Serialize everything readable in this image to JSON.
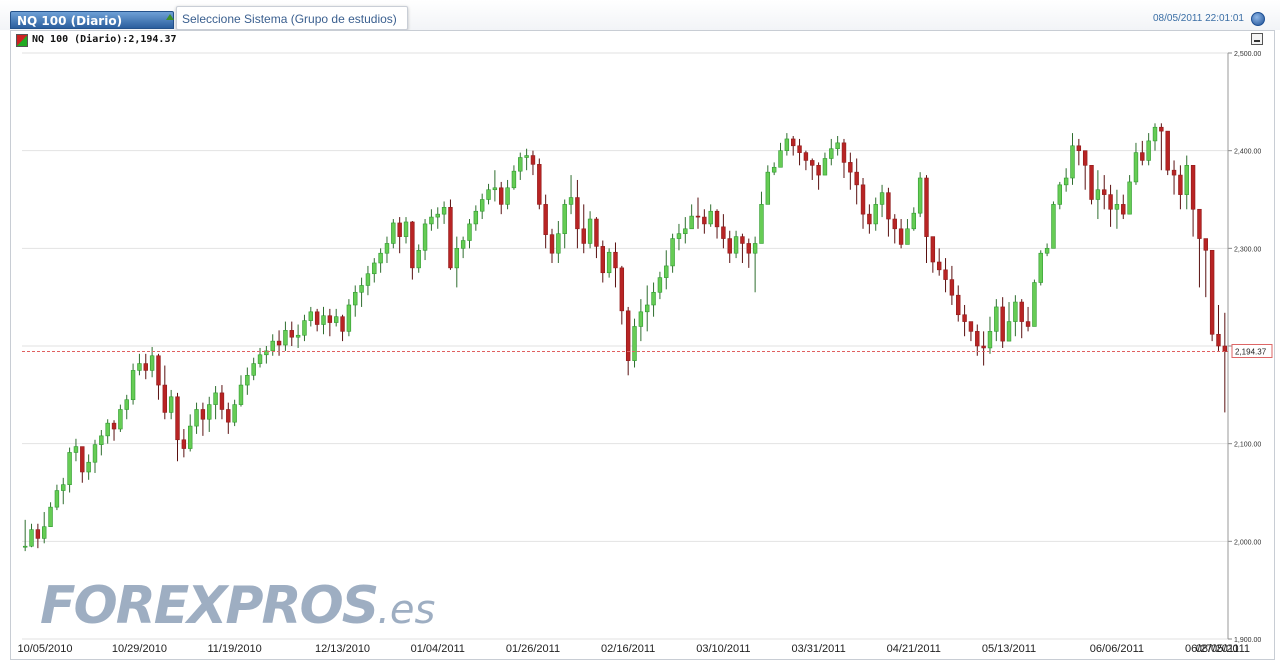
{
  "header": {
    "symbol_tab": "NQ 100 (Diario)",
    "study_select": "Seleccione Sistema (Grupo de estudios)",
    "timestamp": "08/05/2011 22:01:01",
    "settings_icon": "globe-icon"
  },
  "legend": {
    "text": "NQ 100 (Diario):2,194.37",
    "icon": "candle-color-icon"
  },
  "minimize_icon": "minimize-icon",
  "watermark": {
    "main": "FOREXPROS",
    "suffix": ".es"
  },
  "colors": {
    "up": "#2e9a2e",
    "up_body": "#66cc55",
    "down": "#8f1a1a",
    "down_body": "#b82424",
    "last_line": "#e06060",
    "grid": "#e2e2e2"
  },
  "chart_data": {
    "type": "candlestick",
    "ylim": [
      1900,
      2500
    ],
    "y_ticks": [
      1900,
      2000,
      2100,
      2200,
      2300,
      2400,
      2500
    ],
    "y_tick_labels": [
      "1,900.00",
      "2,000.00",
      "2,100.00",
      "2,200.00",
      "2,300.00",
      "2,400.00",
      "2,500.00"
    ],
    "x_tick_labels": [
      "10/05/2010",
      "10/29/2010",
      "11/19/2010",
      "12/13/2010",
      "01/04/2011",
      "01/26/2011",
      "02/16/2011",
      "03/10/2011",
      "03/31/2011",
      "04/21/2011",
      "05/13/2011",
      "06/06/2011",
      "06/27/2011",
      "08/05/2011"
    ],
    "x_tick_index": [
      0,
      18,
      33,
      50,
      65,
      80,
      95,
      110,
      125,
      140,
      155,
      172,
      187,
      215
    ],
    "last_value": 2194.37,
    "last_value_label": "2,194.37",
    "grid": true,
    "close": [
      1995,
      2012,
      2003,
      2015,
      2035,
      2052,
      2058,
      2091,
      2097,
      2071,
      2081,
      2099,
      2108,
      2121,
      2115,
      2135,
      2145,
      2175,
      2182,
      2175,
      2190,
      2160,
      2132,
      2148,
      2104,
      2095,
      2118,
      2135,
      2125,
      2140,
      2152,
      2135,
      2122,
      2140,
      2160,
      2170,
      2182,
      2191,
      2195,
      2205,
      2201,
      2216,
      2209,
      2211,
      2226,
      2235,
      2222,
      2231,
      2224,
      2230,
      2215,
      2242,
      2255,
      2262,
      2274,
      2285,
      2295,
      2305,
      2326,
      2312,
      2327,
      2280,
      2298,
      2325,
      2332,
      2335,
      2342,
      2280,
      2300,
      2308,
      2325,
      2338,
      2350,
      2360,
      2362,
      2345,
      2362,
      2379,
      2393,
      2395,
      2386,
      2345,
      2314,
      2295,
      2315,
      2345,
      2352,
      2320,
      2305,
      2330,
      2302,
      2275,
      2296,
      2280,
      2236,
      2185,
      2220,
      2235,
      2242,
      2255,
      2270,
      2282,
      2310,
      2315,
      2320,
      2333,
      2332,
      2325,
      2338,
      2322,
      2310,
      2295,
      2312,
      2305,
      2295,
      2305,
      2345,
      2378,
      2383,
      2400,
      2412,
      2405,
      2398,
      2390,
      2385,
      2375,
      2392,
      2402,
      2408,
      2388,
      2378,
      2365,
      2335,
      2325,
      2345,
      2357,
      2330,
      2320,
      2304,
      2320,
      2336,
      2372,
      2312,
      2286,
      2278,
      2268,
      2252,
      2232,
      2225,
      2215,
      2200,
      2198,
      2215,
      2240,
      2205,
      2225,
      2245,
      2225,
      2220,
      2265,
      2295,
      2300,
      2345,
      2365,
      2372,
      2405,
      2400,
      2385,
      2350,
      2360,
      2355,
      2340,
      2345,
      2335,
      2368,
      2398,
      2390,
      2410,
      2424,
      2420,
      2380,
      2375,
      2355,
      2385,
      2340,
      2310,
      2298,
      2212,
      2200,
      2194.37
    ],
    "wick": [
      [
        1990,
        2022
      ],
      [
        1994,
        2018
      ],
      [
        1993,
        2018
      ],
      [
        1998,
        2030
      ],
      [
        2015,
        2040
      ],
      [
        2032,
        2058
      ],
      [
        2038,
        2065
      ],
      [
        2050,
        2096
      ],
      [
        2082,
        2105
      ],
      [
        2060,
        2091
      ],
      [
        2063,
        2089
      ],
      [
        2070,
        2104
      ],
      [
        2088,
        2114
      ],
      [
        2100,
        2125
      ],
      [
        2103,
        2124
      ],
      [
        2112,
        2140
      ],
      [
        2125,
        2150
      ],
      [
        2140,
        2182
      ],
      [
        2170,
        2192
      ],
      [
        2166,
        2192
      ],
      [
        2168,
        2199
      ],
      [
        2145,
        2192
      ],
      [
        2125,
        2180
      ],
      [
        2125,
        2155
      ],
      [
        2082,
        2152
      ],
      [
        2086,
        2115
      ],
      [
        2092,
        2130
      ],
      [
        2110,
        2142
      ],
      [
        2108,
        2142
      ],
      [
        2112,
        2148
      ],
      [
        2125,
        2159
      ],
      [
        2125,
        2160
      ],
      [
        2110,
        2142
      ],
      [
        2118,
        2145
      ],
      [
        2138,
        2170
      ],
      [
        2150,
        2178
      ],
      [
        2165,
        2188
      ],
      [
        2178,
        2198
      ],
      [
        2182,
        2200
      ],
      [
        2190,
        2212
      ],
      [
        2190,
        2216
      ],
      [
        2195,
        2225
      ],
      [
        2200,
        2225
      ],
      [
        2198,
        2222
      ],
      [
        2205,
        2232
      ],
      [
        2220,
        2240
      ],
      [
        2215,
        2238
      ],
      [
        2212,
        2240
      ],
      [
        2210,
        2238
      ],
      [
        2220,
        2238
      ],
      [
        2205,
        2232
      ],
      [
        2210,
        2248
      ],
      [
        2230,
        2262
      ],
      [
        2240,
        2270
      ],
      [
        2252,
        2282
      ],
      [
        2265,
        2290
      ],
      [
        2275,
        2300
      ],
      [
        2285,
        2312
      ],
      [
        2300,
        2330
      ],
      [
        2295,
        2332
      ],
      [
        2305,
        2332
      ],
      [
        2268,
        2328
      ],
      [
        2275,
        2304
      ],
      [
        2288,
        2330
      ],
      [
        2318,
        2340
      ],
      [
        2320,
        2342
      ],
      [
        2325,
        2348
      ],
      [
        2278,
        2350
      ],
      [
        2260,
        2312
      ],
      [
        2290,
        2312
      ],
      [
        2300,
        2330
      ],
      [
        2318,
        2344
      ],
      [
        2330,
        2356
      ],
      [
        2345,
        2366
      ],
      [
        2348,
        2380
      ],
      [
        2335,
        2368
      ],
      [
        2340,
        2370
      ],
      [
        2360,
        2385
      ],
      [
        2370,
        2398
      ],
      [
        2380,
        2402
      ],
      [
        2375,
        2400
      ],
      [
        2340,
        2392
      ],
      [
        2300,
        2355
      ],
      [
        2285,
        2320
      ],
      [
        2285,
        2328
      ],
      [
        2300,
        2350
      ],
      [
        2335,
        2375
      ],
      [
        2300,
        2370
      ],
      [
        2295,
        2345
      ],
      [
        2300,
        2338
      ],
      [
        2290,
        2332
      ],
      [
        2265,
        2308
      ],
      [
        2270,
        2300
      ],
      [
        2260,
        2306
      ],
      [
        2222,
        2282
      ],
      [
        2170,
        2240
      ],
      [
        2178,
        2228
      ],
      [
        2205,
        2248
      ],
      [
        2215,
        2262
      ],
      [
        2230,
        2265
      ],
      [
        2248,
        2276
      ],
      [
        2258,
        2298
      ],
      [
        2275,
        2315
      ],
      [
        2298,
        2325
      ],
      [
        2305,
        2332
      ],
      [
        2320,
        2345
      ],
      [
        2320,
        2352
      ],
      [
        2315,
        2340
      ],
      [
        2322,
        2345
      ],
      [
        2310,
        2340
      ],
      [
        2300,
        2335
      ],
      [
        2285,
        2318
      ],
      [
        2290,
        2318
      ],
      [
        2285,
        2315
      ],
      [
        2280,
        2310
      ],
      [
        2255,
        2312
      ],
      [
        2335,
        2358
      ],
      [
        2365,
        2385
      ],
      [
        2375,
        2388
      ],
      [
        2388,
        2408
      ],
      [
        2395,
        2418
      ],
      [
        2395,
        2415
      ],
      [
        2385,
        2412
      ],
      [
        2380,
        2400
      ],
      [
        2370,
        2392
      ],
      [
        2360,
        2388
      ],
      [
        2375,
        2398
      ],
      [
        2385,
        2412
      ],
      [
        2395,
        2415
      ],
      [
        2372,
        2412
      ],
      [
        2360,
        2398
      ],
      [
        2345,
        2392
      ],
      [
        2320,
        2372
      ],
      [
        2315,
        2345
      ],
      [
        2318,
        2352
      ],
      [
        2332,
        2365
      ],
      [
        2312,
        2362
      ],
      [
        2305,
        2335
      ],
      [
        2300,
        2330
      ],
      [
        2305,
        2330
      ],
      [
        2318,
        2342
      ],
      [
        2332,
        2378
      ],
      [
        2285,
        2375
      ],
      [
        2275,
        2312
      ],
      [
        2272,
        2300
      ],
      [
        2255,
        2290
      ],
      [
        2242,
        2282
      ],
      [
        2225,
        2262
      ],
      [
        2210,
        2242
      ],
      [
        2205,
        2225
      ],
      [
        2190,
        2222
      ],
      [
        2180,
        2215
      ],
      [
        2192,
        2230
      ],
      [
        2205,
        2248
      ],
      [
        2198,
        2250
      ],
      [
        2205,
        2245
      ],
      [
        2210,
        2252
      ],
      [
        2208,
        2248
      ],
      [
        2215,
        2240
      ],
      [
        2222,
        2268
      ],
      [
        2262,
        2298
      ],
      [
        2292,
        2305
      ],
      [
        2300,
        2348
      ],
      [
        2340,
        2368
      ],
      [
        2358,
        2382
      ],
      [
        2365,
        2418
      ],
      [
        2385,
        2412
      ],
      [
        2360,
        2400
      ],
      [
        2345,
        2372
      ],
      [
        2330,
        2380
      ],
      [
        2340,
        2375
      ],
      [
        2322,
        2365
      ],
      [
        2320,
        2360
      ],
      [
        2330,
        2355
      ],
      [
        2340,
        2375
      ],
      [
        2365,
        2408
      ],
      [
        2385,
        2410
      ],
      [
        2385,
        2418
      ],
      [
        2400,
        2428
      ],
      [
        2380,
        2428
      ],
      [
        2375,
        2396
      ],
      [
        2355,
        2390
      ],
      [
        2340,
        2385
      ],
      [
        2340,
        2395
      ],
      [
        2312,
        2385
      ],
      [
        2260,
        2320
      ],
      [
        2250,
        2305
      ],
      [
        2205,
        2285
      ],
      [
        2195,
        2242
      ],
      [
        2132,
        2234
      ]
    ]
  }
}
